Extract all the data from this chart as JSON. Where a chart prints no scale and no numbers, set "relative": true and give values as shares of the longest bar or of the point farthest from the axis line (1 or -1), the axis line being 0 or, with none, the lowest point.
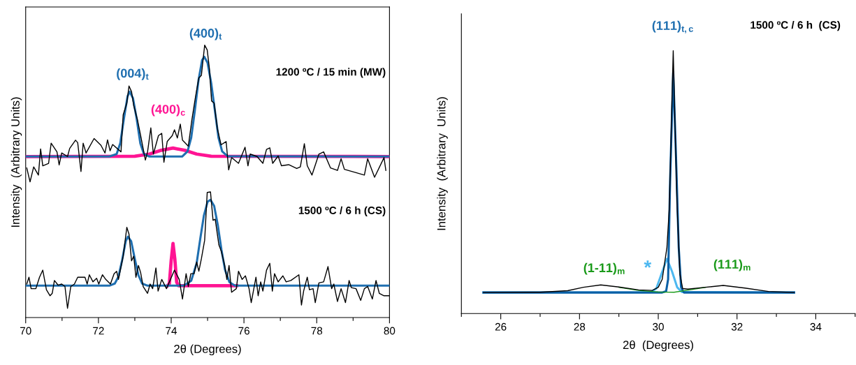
{
  "chart_data": [
    {
      "type": "line",
      "relative": true,
      "xlabel": "2θ (Degrees)",
      "ylabel": "Intensity  (Arbitrary Units)",
      "xlim": [
        70,
        80
      ],
      "xticks": [
        70,
        {
          "value": 71,
          "label": null
        },
        72,
        {
          "value": 73,
          "label": null
        },
        74,
        {
          "value": 75,
          "label": null
        },
        76,
        {
          "value": 77,
          "label": null
        },
        78,
        {
          "value": 79,
          "label": null
        },
        80
      ],
      "grid": false,
      "legend": false,
      "marker": "none",
      "line_style": "solid",
      "series": [
        {
          "color": "#000000",
          "x": [
            70.03,
            70.12,
            70.22,
            70.35,
            70.41,
            70.47,
            70.63,
            70.7,
            70.86,
            70.92,
            70.99,
            71.15,
            71.21,
            71.37,
            71.43,
            71.52,
            71.58,
            71.66,
            71.88,
            72.07,
            72.18,
            72.25,
            72.32,
            72.39,
            72.62,
            72.68,
            72.78,
            72.84,
            72.91,
            72.97,
            73.07,
            73.16,
            73.29,
            73.35,
            73.44,
            73.51,
            73.65,
            73.74,
            73.8,
            73.89,
            74.03,
            74.09,
            74.17,
            74.25,
            74.31,
            74.47,
            74.57,
            74.67,
            74.76,
            74.83,
            74.92,
            74.99,
            75.05,
            75.11,
            75.18,
            75.27,
            75.37,
            75.51,
            75.58,
            75.66,
            75.85,
            76.03,
            76.11,
            76.17,
            76.36,
            76.52,
            76.62,
            76.71,
            76.79,
            76.94,
            77.03,
            77.23,
            77.45,
            77.55,
            77.66,
            77.74,
            77.87,
            78.06,
            78.19,
            78.38,
            78.57,
            78.67,
            78.76,
            79.08,
            79.31,
            79.4,
            79.59,
            79.85,
            79.9
          ],
          "values": [
            0.549,
            0.498,
            0.553,
            0.523,
            0.619,
            0.557,
            0.566,
            0.64,
            0.608,
            0.56,
            0.604,
            0.591,
            0.621,
            0.651,
            0.642,
            0.536,
            0.64,
            0.604,
            0.657,
            0.632,
            0.604,
            0.652,
            0.612,
            0.635,
            0.608,
            0.744,
            0.787,
            0.85,
            0.829,
            0.778,
            0.727,
            0.668,
            0.578,
            0.608,
            0.696,
            0.6,
            0.668,
            0.676,
            0.57,
            0.646,
            0.668,
            0.689,
            0.659,
            0.71,
            0.651,
            0.629,
            0.727,
            0.812,
            0.88,
            0.889,
            1.0,
            0.982,
            0.914,
            0.795,
            0.787,
            0.693,
            0.634,
            0.646,
            0.542,
            0.587,
            0.566,
            0.625,
            0.557,
            0.6,
            0.591,
            0.566,
            0.617,
            0.623,
            0.566,
            0.593,
            0.557,
            0.561,
            0.547,
            0.553,
            0.638,
            0.557,
            0.523,
            0.6,
            0.608,
            0.549,
            0.54,
            0.583,
            0.544,
            0.532,
            0.523,
            0.583,
            0.515,
            0.587,
            0.54
          ]
        },
        {
          "color": "#ff1493",
          "x": [
            70,
            73.0,
            73.4,
            73.7,
            74.05,
            74.4,
            74.7,
            75.1,
            80
          ],
          "values": [
            0.591,
            0.592,
            0.6,
            0.613,
            0.622,
            0.613,
            0.6,
            0.592,
            0.591
          ]
        },
        {
          "color": "#1f6fb0",
          "x": [
            70,
            72.3,
            72.5,
            72.6,
            72.7,
            72.8,
            72.86,
            72.95,
            73.05,
            73.15,
            73.25,
            73.4,
            74.3,
            74.45,
            74.55,
            74.65,
            74.75,
            74.85,
            74.91,
            75.0,
            75.1,
            75.2,
            75.3,
            75.4,
            75.55,
            80
          ],
          "values": [
            0.591,
            0.591,
            0.6,
            0.64,
            0.73,
            0.812,
            0.829,
            0.805,
            0.73,
            0.64,
            0.6,
            0.591,
            0.591,
            0.61,
            0.66,
            0.76,
            0.87,
            0.945,
            0.957,
            0.935,
            0.86,
            0.76,
            0.66,
            0.61,
            0.592,
            0.591
          ]
        },
        {
          "color": "#000000",
          "x": [
            70.03,
            70.09,
            70.15,
            70.28,
            70.38,
            70.47,
            70.57,
            70.67,
            70.73,
            70.79,
            70.89,
            70.99,
            71.08,
            71.15,
            71.24,
            71.34,
            71.43,
            71.63,
            71.69,
            71.75,
            71.85,
            71.95,
            72.01,
            72.11,
            72.2,
            72.33,
            72.43,
            72.5,
            72.55,
            72.68,
            72.78,
            72.84,
            72.91,
            72.97,
            73.03,
            73.1,
            73.16,
            73.23,
            73.35,
            73.42,
            73.49,
            73.58,
            73.64,
            73.74,
            73.87,
            74.09,
            74.22,
            74.31,
            74.41,
            74.47,
            74.54,
            74.63,
            74.7,
            74.76,
            74.83,
            74.92,
            74.99,
            75.08,
            75.15,
            75.21,
            75.31,
            75.38,
            75.47,
            75.53,
            75.59,
            75.66,
            75.79,
            75.85,
            75.95,
            76.04,
            76.14,
            76.2,
            76.33,
            76.39,
            76.46,
            76.52,
            76.62,
            76.71,
            76.78,
            76.84,
            76.94,
            77.07,
            77.16,
            77.29,
            77.51,
            77.58,
            77.64,
            77.74,
            77.8,
            77.9,
            77.96,
            78.06,
            78.19,
            78.31,
            78.41,
            78.47,
            78.57,
            78.67,
            78.79,
            78.89,
            78.95,
            79.08,
            79.21,
            79.31,
            79.4,
            79.53,
            79.63,
            79.72,
            79.85,
            80.0
          ],
          "values": [
            0.123,
            0.148,
            0.106,
            0.106,
            0.148,
            0.174,
            0.102,
            0.08,
            0.089,
            0.136,
            0.119,
            0.123,
            0.114,
            0.034,
            0.114,
            0.123,
            0.148,
            0.148,
            0.123,
            0.157,
            0.131,
            0.144,
            0.123,
            0.157,
            0.14,
            0.123,
            0.161,
            0.17,
            0.14,
            0.225,
            0.331,
            0.306,
            0.208,
            0.225,
            0.148,
            0.191,
            0.165,
            0.114,
            0.089,
            0.123,
            0.106,
            0.182,
            0.097,
            0.14,
            0.106,
            0.174,
            0.14,
            0.068,
            0.161,
            0.114,
            0.161,
            0.161,
            0.204,
            0.17,
            0.216,
            0.284,
            0.459,
            0.461,
            0.357,
            0.361,
            0.267,
            0.242,
            0.191,
            0.14,
            0.191,
            0.093,
            0.106,
            0.17,
            0.14,
            0.153,
            0.106,
            0.055,
            0.148,
            0.08,
            0.131,
            0.097,
            0.174,
            0.199,
            0.097,
            0.161,
            0.131,
            0.153,
            0.131,
            0.136,
            0.157,
            0.046,
            0.097,
            0.148,
            0.102,
            0.106,
            0.055,
            0.127,
            0.131,
            0.187,
            0.106,
            0.123,
            0.059,
            0.106,
            0.055,
            0.136,
            0.11,
            0.106,
            0.063,
            0.106,
            0.114,
            0.068,
            0.136,
            0.089,
            0.08,
            0.08
          ]
        },
        {
          "color": "#ff1493",
          "x": [
            73.9,
            73.95,
            74.0,
            74.05,
            74.1,
            74.15,
            74.2,
            75.8
          ],
          "values": [
            0.117,
            0.125,
            0.21,
            0.272,
            0.215,
            0.13,
            0.117,
            0.117
          ]
        },
        {
          "color": "#1f6fb0",
          "x": [
            70,
            72.3,
            72.45,
            72.55,
            72.65,
            72.75,
            72.81,
            72.9,
            73.0,
            73.1,
            73.2,
            73.35,
            74.35,
            74.55,
            74.7,
            74.8,
            74.9,
            75.0,
            75.08,
            75.18,
            75.28,
            75.38,
            75.48,
            75.6,
            75.75,
            80
          ],
          "values": [
            0.117,
            0.117,
            0.125,
            0.15,
            0.21,
            0.28,
            0.297,
            0.28,
            0.215,
            0.155,
            0.125,
            0.117,
            0.117,
            0.135,
            0.2,
            0.29,
            0.375,
            0.425,
            0.432,
            0.41,
            0.34,
            0.25,
            0.175,
            0.13,
            0.117,
            0.117
          ]
        }
      ],
      "annotations": [
        "(004)$_{t}$",
        "(400)$_{t}$",
        "(400)$_{c}$",
        "1200 ºC / 15 min (MW)",
        "1500 ºC / 6 h (CS)"
      ]
    },
    {
      "type": "line",
      "relative": true,
      "xlabel": "2θ  (Degrees)",
      "ylabel": "Intensity  (Arbitrary  Units)",
      "xlim": [
        25,
        35
      ],
      "xticks": [
        {
          "value": 25,
          "label": null
        },
        26,
        {
          "value": 27,
          "label": null
        },
        28,
        {
          "value": 29,
          "label": null
        },
        30,
        {
          "value": 31,
          "label": null
        },
        32,
        {
          "value": 33,
          "label": null
        },
        34,
        {
          "value": 35,
          "label": null
        }
      ],
      "grid": false,
      "legend": false,
      "marker": "none",
      "line_style": "solid",
      "series": [
        {
          "color": "#000000",
          "x": [
            25.56,
            27.0,
            27.7,
            28.1,
            28.54,
            29.0,
            29.5,
            29.85,
            30.0,
            30.1,
            30.22,
            30.28,
            30.33,
            30.38,
            30.42,
            30.48,
            30.55,
            30.62,
            30.75,
            31.2,
            31.65,
            32.2,
            32.8,
            33.45
          ],
          "values": [
            0.08,
            0.081,
            0.087,
            0.1,
            0.109,
            0.101,
            0.09,
            0.088,
            0.1,
            0.13,
            0.251,
            0.4,
            0.7,
            1.0,
            0.75,
            0.4,
            0.15,
            0.095,
            0.093,
            0.1,
            0.107,
            0.097,
            0.084,
            0.08
          ]
        },
        {
          "color": "#1a9a1a",
          "x": [
            29.0,
            29.5,
            30.0,
            30.4,
            30.8,
            31.2
          ],
          "values": [
            0.1,
            0.088,
            0.082,
            0.081,
            0.09,
            0.1
          ]
        },
        {
          "color": "#4db8f0",
          "x": [
            25.56,
            29.8,
            29.95,
            30.08,
            30.22,
            30.35,
            30.48,
            30.6,
            33.45
          ],
          "values": [
            0.08,
            0.081,
            0.095,
            0.15,
            0.208,
            0.16,
            0.1,
            0.082,
            0.08
          ]
        },
        {
          "color": "#0a5fa5",
          "x": [
            25.56,
            30.1,
            30.2,
            30.25,
            30.3,
            30.38,
            30.45,
            30.52,
            30.58,
            30.65,
            33.45
          ],
          "values": [
            0.08,
            0.08,
            0.085,
            0.13,
            0.5,
            0.92,
            0.6,
            0.25,
            0.1,
            0.08,
            0.08
          ]
        }
      ],
      "annotations": [
        "(111)$_{t,c}$",
        "1500 ºC / 6 h  (CS)",
        "(1-11)$_{m}$",
        "*",
        "(111)$_{m}$"
      ]
    }
  ]
}
